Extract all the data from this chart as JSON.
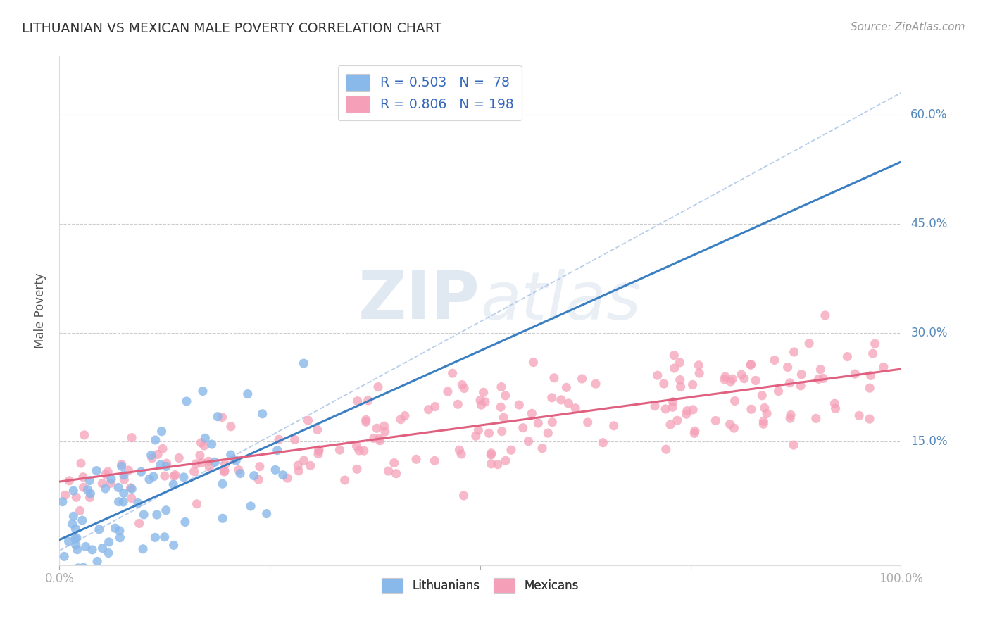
{
  "title": "LITHUANIAN VS MEXICAN MALE POVERTY CORRELATION CHART",
  "source": "Source: ZipAtlas.com",
  "ylabel": "Male Poverty",
  "xlim": [
    0,
    1
  ],
  "ylim": [
    -0.02,
    0.68
  ],
  "ytick_positions": [
    0.15,
    0.3,
    0.45,
    0.6
  ],
  "ytick_labels": [
    "15.0%",
    "30.0%",
    "45.0%",
    "60.0%"
  ],
  "blue_color": "#89b8ea",
  "pink_color": "#f5a0b8",
  "blue_line_color": "#3a7fc1",
  "pink_line_color": "#e06080",
  "legend_blue_label": "R = 0.503   N =  78",
  "legend_pink_label": "R = 0.806   N = 198",
  "legend_bottom_blue": "Lithuanians",
  "legend_bottom_pink": "Mexicans",
  "title_color": "#333333",
  "source_color": "#999999",
  "R_blue": 0.503,
  "N_blue": 78,
  "R_pink": 0.806,
  "N_pink": 198,
  "blue_intercept": 0.015,
  "blue_slope": 0.52,
  "pink_intercept": 0.095,
  "pink_slope": 0.155,
  "watermark_zip": "ZIP",
  "watermark_atlas": "atlas",
  "background_color": "#ffffff",
  "grid_color": "#cccccc",
  "diag_color": "#b0c8e8"
}
